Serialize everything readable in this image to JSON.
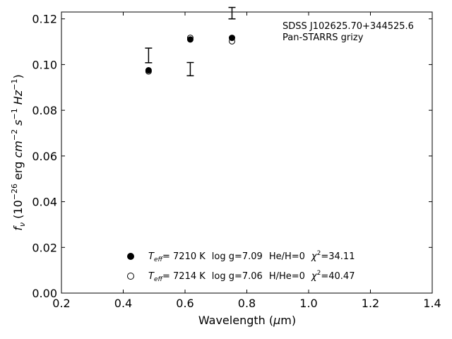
{
  "chart_data": {
    "type": "scatter",
    "title": "",
    "annotation": {
      "line1": "SDSS J102625.70+344525.6",
      "line2": "Pan-STARRS grizy"
    },
    "xlabel": {
      "text": "Wavelength (",
      "mu": "μ",
      "unit": "m)"
    },
    "ylabel": {
      "f": "f",
      "nu": "ν",
      "open": " (10",
      "exp1": "−26",
      "erg": " erg ",
      "cm": "cm",
      "exp2": "−2",
      "s": " s",
      "exp3": "−1",
      "hz": " Hz",
      "exp4": "−1",
      "close": ")"
    },
    "xlim": [
      0.2,
      1.4
    ],
    "ylim": [
      0.0,
      0.123
    ],
    "xticks": [
      "0.2",
      "0.4",
      "0.6",
      "0.8",
      "1.0",
      "1.2",
      "1.4"
    ],
    "yticks": [
      "0.00",
      "0.02",
      "0.04",
      "0.06",
      "0.08",
      "0.10",
      "0.12"
    ],
    "grid": false,
    "legend_position": "bottom-center",
    "observed": {
      "x": [
        0.482,
        0.617,
        0.752
      ],
      "y": [
        0.104,
        0.098,
        0.1225
      ],
      "err": [
        0.0032,
        0.0029,
        0.0025
      ]
    },
    "series": [
      {
        "marker": "filled-circle",
        "teff_label": "T",
        "teff_sub": "eff",
        "teff_value": "=  7210 K",
        "logg": "log g=7.09",
        "comp": "He/H=0",
        "chi_label": "χ",
        "chi_exp": "2",
        "chi_value": "=34.11",
        "x": [
          0.482,
          0.617,
          0.752
        ],
        "y": [
          0.0975,
          0.111,
          0.1117
        ]
      },
      {
        "marker": "open-circle",
        "teff_label": "T",
        "teff_sub": "eff",
        "teff_value": "=  7214 K",
        "logg": "log g=7.06",
        "comp": "H/He=0",
        "chi_label": "χ",
        "chi_exp": "2",
        "chi_value": "=40.47",
        "x": [
          0.482,
          0.617,
          0.752
        ],
        "y": [
          0.097,
          0.1117,
          0.1102
        ]
      }
    ]
  }
}
